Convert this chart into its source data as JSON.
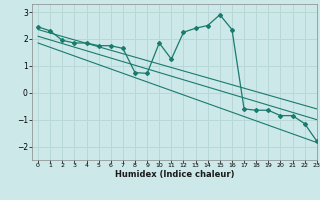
{
  "xlabel": "Humidex (Indice chaleur)",
  "xlim": [
    -0.5,
    23
  ],
  "ylim": [
    -2.5,
    3.3
  ],
  "xticks": [
    0,
    1,
    2,
    3,
    4,
    5,
    6,
    7,
    8,
    9,
    10,
    11,
    12,
    13,
    14,
    15,
    16,
    17,
    18,
    19,
    20,
    21,
    22,
    23
  ],
  "yticks": [
    -2,
    -1,
    0,
    1,
    2,
    3
  ],
  "bg_color": "#cce8e8",
  "grid_color": "#b8d8d8",
  "line_color": "#1a7a6e",
  "curve1_x": [
    0,
    1,
    2,
    3,
    4,
    5,
    6,
    7,
    8,
    9,
    10,
    11,
    12,
    13,
    14,
    15,
    16,
    17,
    18,
    19,
    20,
    21,
    22,
    23
  ],
  "curve1_y": [
    2.45,
    2.3,
    1.95,
    1.85,
    1.85,
    1.75,
    1.75,
    1.65,
    0.75,
    0.72,
    1.85,
    1.25,
    2.25,
    2.4,
    2.5,
    2.9,
    2.35,
    -0.6,
    -0.65,
    -0.65,
    -0.85,
    -0.85,
    -1.15,
    -1.8
  ],
  "curve2_x": [
    0,
    23
  ],
  "curve2_y": [
    2.35,
    -0.6
  ],
  "curve3_x": [
    0,
    23
  ],
  "curve3_y": [
    2.1,
    -1.0
  ],
  "curve4_x": [
    0,
    23
  ],
  "curve4_y": [
    1.85,
    -1.85
  ]
}
